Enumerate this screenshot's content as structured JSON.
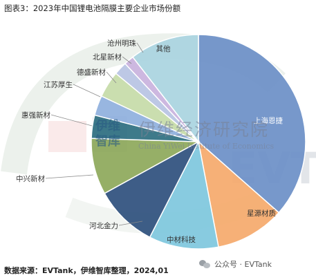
{
  "title": "图表3：2023年中国锂电池隔膜主要企业市场份额",
  "footer": "数据来源：EVTank，伊维智库整理，2024,01",
  "wechat_label": "公众号 · EVTank",
  "watermark": {
    "chinese": "伊维经济研究院",
    "english": "China YiWei Institute of Economics",
    "logo_text": "伊维\n智库",
    "brand_text": "EVTank"
  },
  "chart_data": {
    "type": "pie",
    "title": "图表3：2023年中国锂电池隔膜主要企业市场份额",
    "start_angle_deg": 0,
    "direction": "clockwise",
    "slices": [
      {
        "label": "上海恩捷",
        "value": 36.5,
        "color": "#6b8fc7"
      },
      {
        "label": "星源材质",
        "value": 10.5,
        "color": "#f5a96b"
      },
      {
        "label": "中材科技",
        "value": 10.5,
        "color": "#7ec7dd"
      },
      {
        "label": "河北金力",
        "value": 9.5,
        "color": "#2e4f7d"
      },
      {
        "label": "中兴新材",
        "value": 8.5,
        "color": "#8da85a"
      },
      {
        "label": "惠强新材",
        "value": 3.5,
        "color": "#2e6f80"
      },
      {
        "label": "江苏厚生",
        "value": 3.0,
        "color": "#8fb0dd"
      },
      {
        "label": "德盛新材",
        "value": 4.0,
        "color": "#c5dba8"
      },
      {
        "label": "北星新材",
        "value": 2.0,
        "color": "#b7c3e3"
      },
      {
        "label": "沧州明珠",
        "value": 1.5,
        "color": "#c9b2dd"
      },
      {
        "label": "其他",
        "value": 10.5,
        "color": "#a9d4e0"
      }
    ]
  }
}
